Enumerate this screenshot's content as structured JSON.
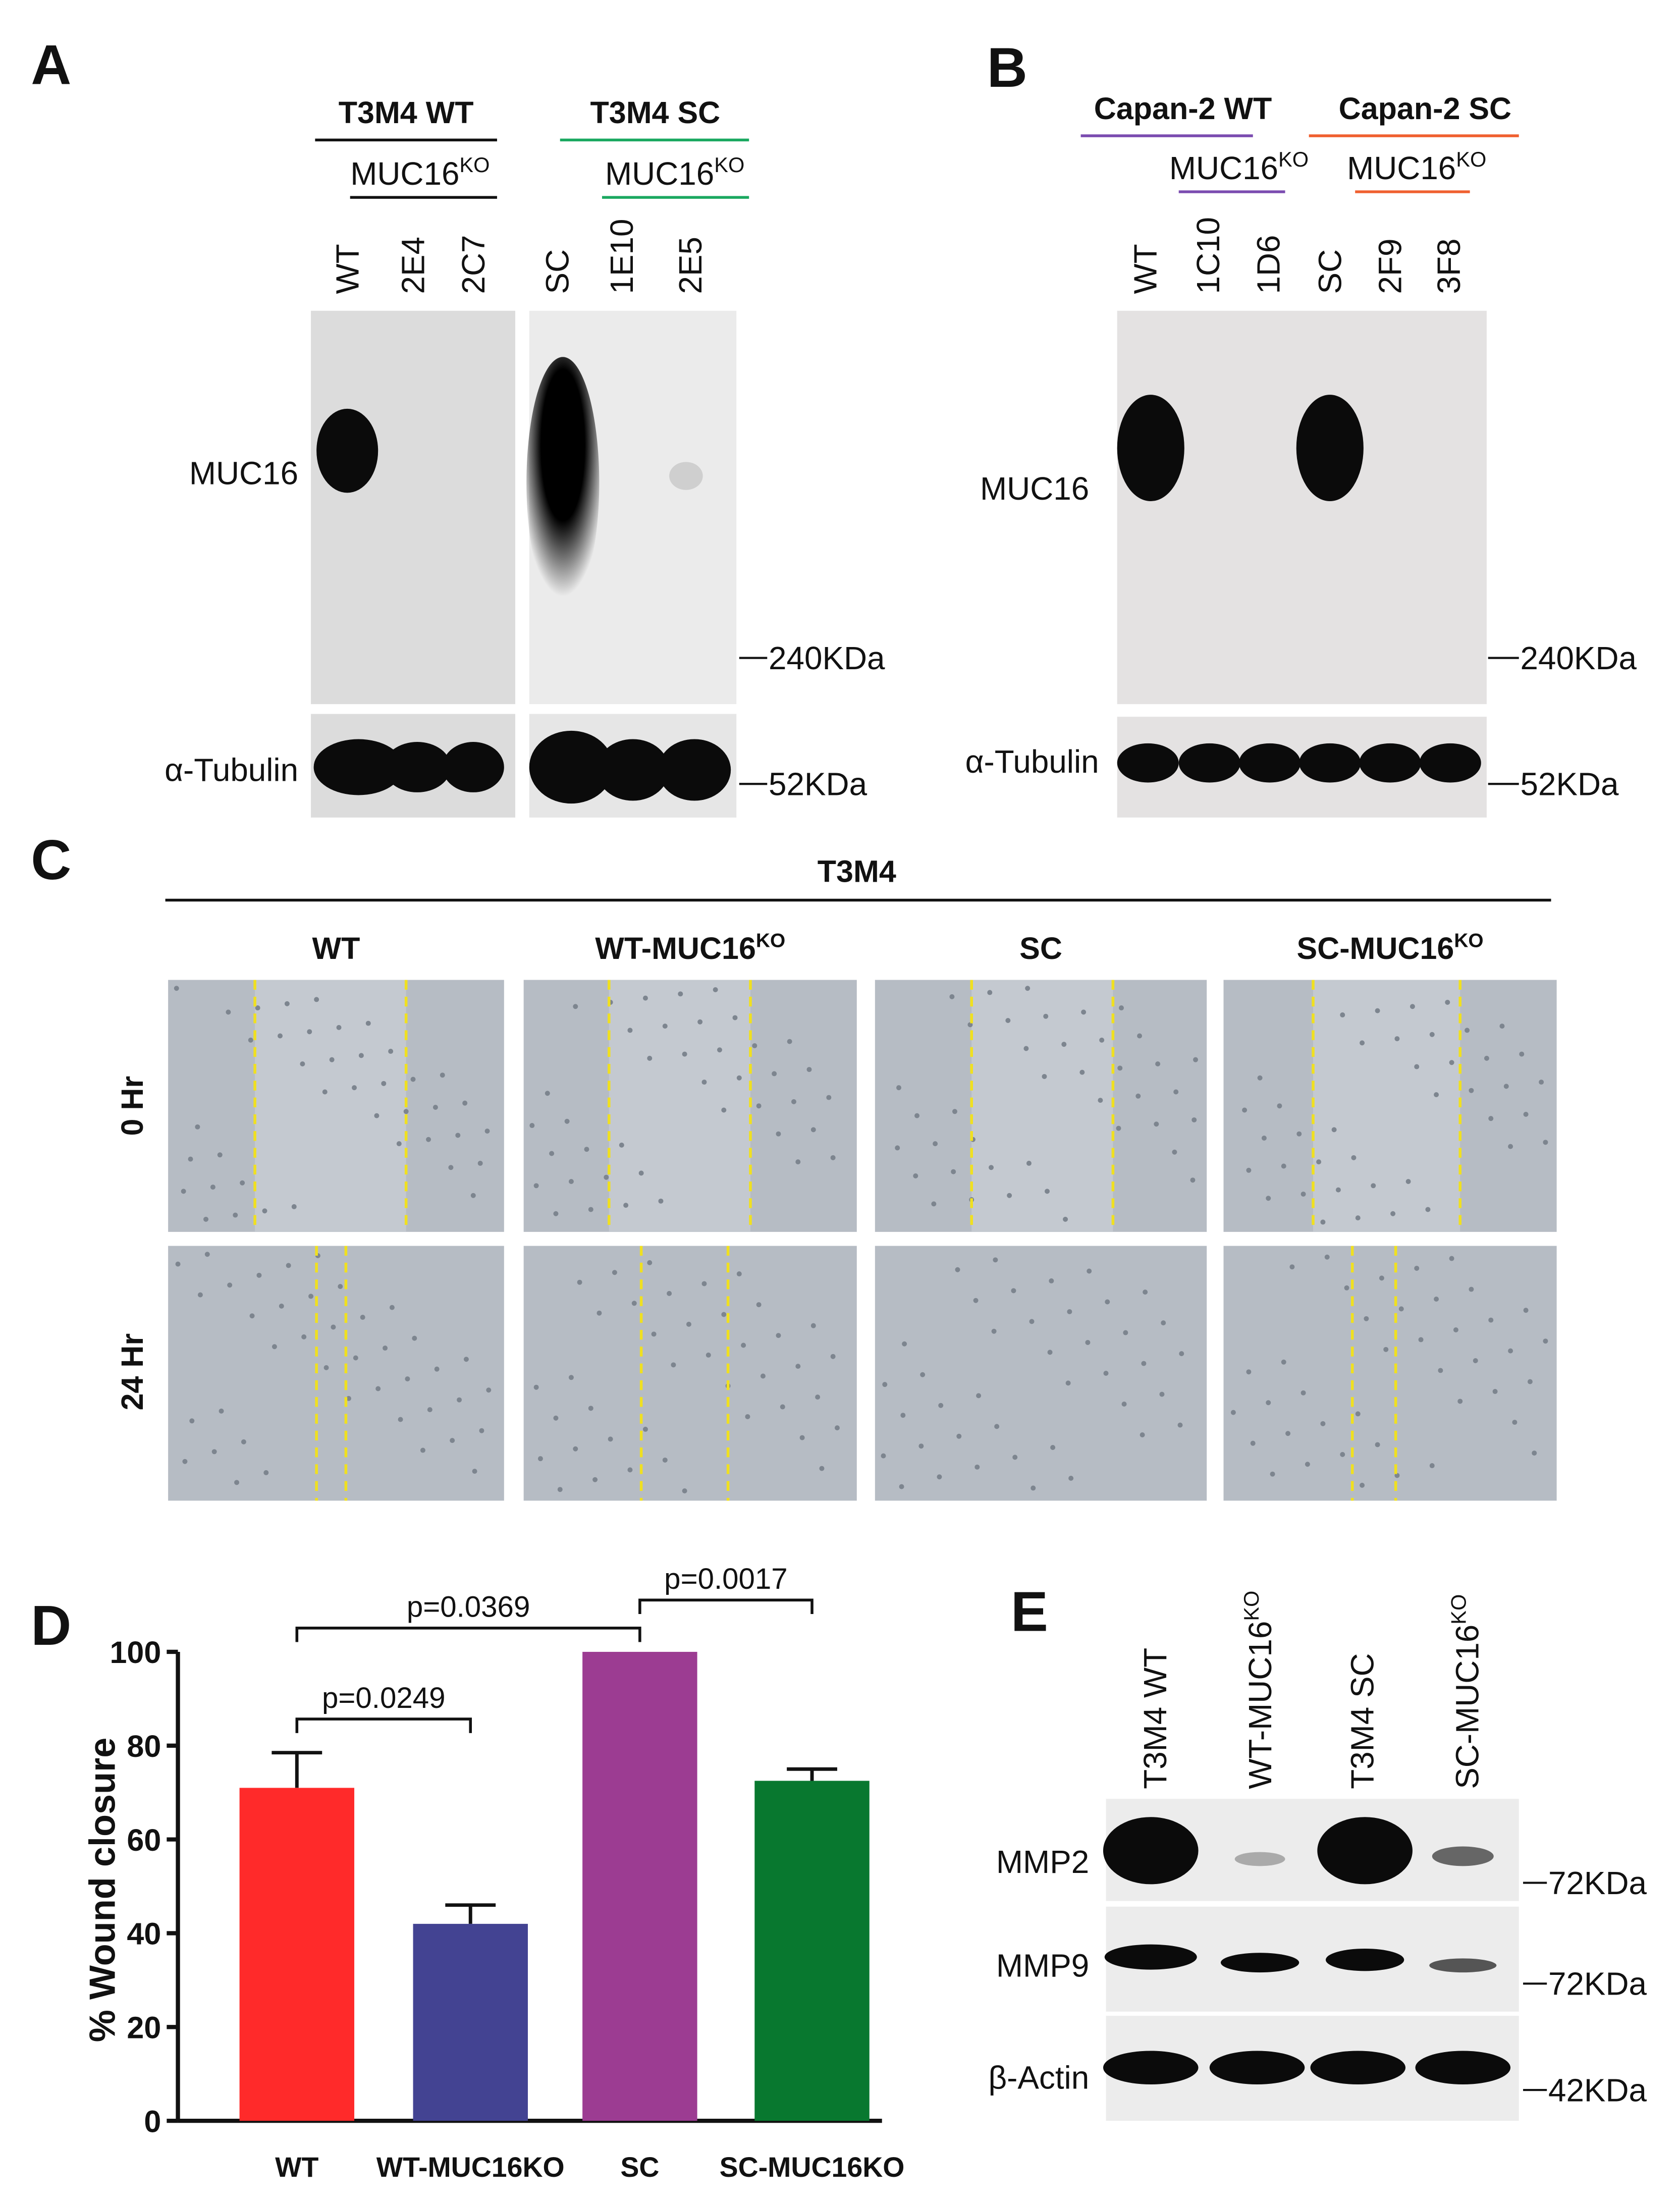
{
  "panel_a": {
    "letter": "A",
    "groups": [
      {
        "title": "T3M4 WT",
        "ko_label": "MUC16",
        "ko_sup": "KO",
        "lanes": [
          "WT",
          "2E4",
          "2C7"
        ]
      },
      {
        "title": "T3M4 SC",
        "ko_label": "MUC16",
        "ko_sup": "KO",
        "lanes": [
          "SC",
          "1E10",
          "2E5"
        ]
      }
    ],
    "rows": [
      "MUC16",
      "α-Tubulin"
    ],
    "markers": [
      "240KDa",
      "52KDa"
    ]
  },
  "panel_b": {
    "letter": "B",
    "groups": [
      {
        "title": "Capan-2 WT",
        "ko_label": "MUC16",
        "ko_sup": "KO",
        "lanes": [
          "WT",
          "1C10",
          "1D6"
        ]
      },
      {
        "title": "Capan-2 SC",
        "ko_label": "MUC16",
        "ko_sup": "KO",
        "lanes": [
          "SC",
          "2F9",
          "3F8"
        ]
      }
    ],
    "rows": [
      "MUC16",
      "α-Tubulin"
    ],
    "markers": [
      "240KDa",
      "52KDa"
    ]
  },
  "panel_c": {
    "letter": "C",
    "title": "T3M4",
    "columns": [
      {
        "text": "WT"
      },
      {
        "text": "WT-MUC16",
        "sup": "KO"
      },
      {
        "text": "SC"
      },
      {
        "text": "SC-MUC16",
        "sup": "KO"
      }
    ],
    "rows": [
      "0 Hr",
      "24 Hr"
    ]
  },
  "chart_data": {
    "type": "bar",
    "panel_label": "D",
    "y_label": "% Wound closure",
    "categories": [
      "WT",
      "WT-MUC16KO",
      "SC",
      "SC-MUC16KO"
    ],
    "values": [
      71,
      42,
      100,
      72.5
    ],
    "errors": [
      7.5,
      4,
      0,
      2.5
    ],
    "colors": [
      "#ff2a2a",
      "#434392",
      "#9c3c92",
      "#08782f"
    ],
    "ylim": [
      0,
      100
    ],
    "yticks": [
      0,
      20,
      40,
      60,
      80,
      100
    ],
    "annotations": [
      "p=0.0249",
      "p=0.0369",
      "p=0.0017"
    ]
  },
  "panel_e": {
    "letter": "E",
    "lanes": [
      {
        "text": "T3M4 WT"
      },
      {
        "text": "WT-MUC16",
        "sup": "KO"
      },
      {
        "text": "T3M4 SC"
      },
      {
        "text": "SC-MUC16",
        "sup": "KO"
      }
    ],
    "rows": [
      "MMP2",
      "MMP9",
      "β-Actin"
    ],
    "markers": [
      "72KDa",
      "72KDa",
      "42KDa"
    ]
  }
}
